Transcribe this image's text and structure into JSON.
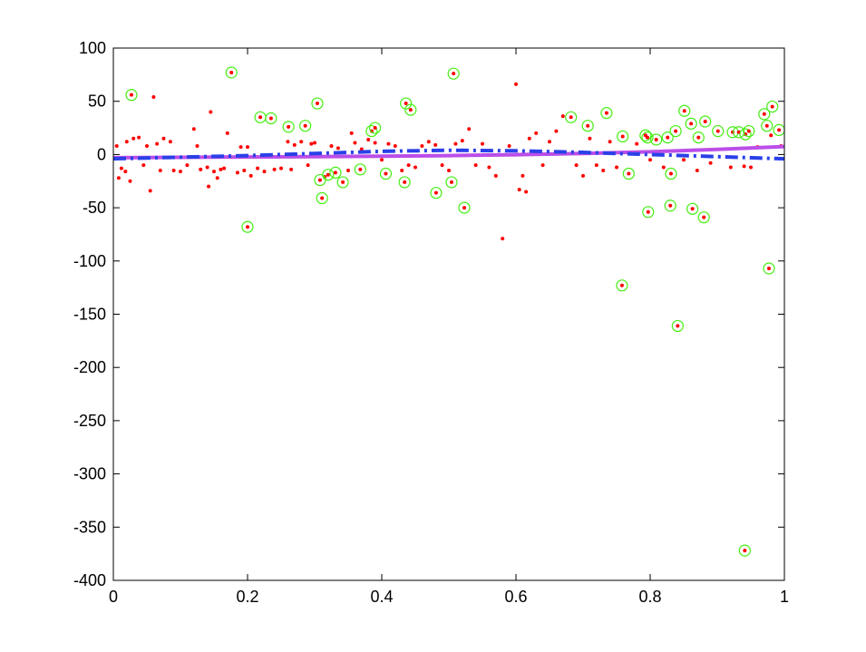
{
  "chart_data": {
    "type": "scatter",
    "xlim": [
      0,
      1
    ],
    "xticks": [
      0,
      0.2,
      0.4,
      0.6,
      0.8,
      1
    ],
    "ylim": [
      -400,
      100
    ],
    "yticks": [
      -400,
      -350,
      -300,
      -250,
      -200,
      -150,
      -100,
      -50,
      0,
      50,
      100
    ],
    "series": [
      {
        "marker": "dot",
        "color": "#ff0000",
        "x": [
          0.005,
          0.008,
          0.012,
          0.018,
          0.02,
          0.025,
          0.03,
          0.038,
          0.045,
          0.05,
          0.055,
          0.06,
          0.065,
          0.07,
          0.075,
          0.085,
          0.09,
          0.1,
          0.11,
          0.12,
          0.125,
          0.13,
          0.14,
          0.142,
          0.145,
          0.15,
          0.155,
          0.16,
          0.165,
          0.17,
          0.185,
          0.19,
          0.195,
          0.2,
          0.205,
          0.215,
          0.225,
          0.24,
          0.25,
          0.26,
          0.265,
          0.27,
          0.28,
          0.29,
          0.295,
          0.3,
          0.315,
          0.325,
          0.335,
          0.35,
          0.355,
          0.36,
          0.37,
          0.38,
          0.39,
          0.4,
          0.41,
          0.42,
          0.43,
          0.44,
          0.45,
          0.46,
          0.47,
          0.48,
          0.49,
          0.5,
          0.51,
          0.52,
          0.53,
          0.54,
          0.55,
          0.56,
          0.57,
          0.58,
          0.59,
          0.6,
          0.605,
          0.61,
          0.615,
          0.62,
          0.63,
          0.64,
          0.65,
          0.66,
          0.67,
          0.69,
          0.7,
          0.71,
          0.72,
          0.73,
          0.74,
          0.75,
          0.78,
          0.8,
          0.82,
          0.85,
          0.87,
          0.89,
          0.92,
          0.94,
          0.95,
          0.96,
          0.98,
          0.995
        ],
        "values": [
          8,
          -22,
          -13,
          -16,
          12,
          -25,
          15,
          16,
          -10,
          8,
          -34,
          54,
          10,
          -15,
          15,
          12,
          -15,
          -16,
          -10,
          24,
          8,
          -14,
          -12,
          -30,
          40,
          -16,
          -22,
          -14,
          -13,
          20,
          -17,
          7,
          -15,
          7,
          -20,
          -13,
          -16,
          -14,
          -13,
          12,
          -14,
          9,
          12,
          -10,
          10,
          11,
          -21,
          8,
          6,
          -15,
          20,
          11,
          5,
          14,
          11,
          -5,
          10,
          8,
          -15,
          -10,
          -12,
          8,
          12,
          9,
          -10,
          -15,
          10,
          13,
          24,
          -10,
          10,
          -12,
          -20,
          -79,
          8,
          66,
          -33,
          -20,
          -35,
          15,
          20,
          -10,
          12,
          22,
          36,
          -10,
          -20,
          15,
          -10,
          -15,
          12,
          -12,
          10,
          -5,
          -12,
          -5,
          -15,
          -8,
          -12,
          -11,
          -12,
          7,
          18,
          8
        ]
      },
      {
        "marker": "circled",
        "color": "#44ee11",
        "dot_color": "#ff0000",
        "x": [
          0.027,
          0.176,
          0.2,
          0.219,
          0.235,
          0.261,
          0.286,
          0.304,
          0.308,
          0.311,
          0.32,
          0.331,
          0.342,
          0.368,
          0.385,
          0.39,
          0.406,
          0.434,
          0.436,
          0.443,
          0.481,
          0.504,
          0.507,
          0.523,
          0.682,
          0.707,
          0.735,
          0.758,
          0.759,
          0.768,
          0.793,
          0.796,
          0.797,
          0.809,
          0.826,
          0.83,
          0.831,
          0.838,
          0.841,
          0.851,
          0.861,
          0.863,
          0.872,
          0.88,
          0.882,
          0.901,
          0.923,
          0.932,
          0.941,
          0.942,
          0.947,
          0.97,
          0.974,
          0.977,
          0.982,
          0.992
        ],
        "values": [
          56,
          77,
          -68,
          35,
          34,
          26,
          27,
          48,
          -24,
          -41,
          -19,
          -17,
          -26,
          -14,
          22,
          25,
          -18,
          -26,
          48,
          42,
          -36,
          -26,
          76,
          -50,
          35,
          27,
          39,
          -123,
          17,
          -18,
          18,
          16,
          -54,
          14,
          16,
          -48,
          -18,
          22,
          -161,
          41,
          29,
          -51,
          16,
          -59,
          31,
          22,
          21,
          21,
          -372,
          19,
          22,
          38,
          27,
          -107,
          45,
          23
        ]
      },
      {
        "line": "solid",
        "color": "#bb4ee8",
        "x": [
          0,
          0.1,
          0.2,
          0.3,
          0.4,
          0.5,
          0.6,
          0.7,
          0.8,
          0.9,
          1
        ],
        "values": [
          -3,
          -2.6,
          -2.3,
          -2,
          -1.6,
          -1,
          -0.2,
          1,
          2.6,
          4.8,
          7.5
        ]
      },
      {
        "line": "dashdot",
        "color": "#2a40e8",
        "x": [
          0,
          0.1,
          0.2,
          0.3,
          0.4,
          0.5,
          0.6,
          0.7,
          0.8,
          0.9,
          1
        ],
        "values": [
          -4,
          -2.5,
          -1,
          1,
          3,
          4,
          3.5,
          2,
          0,
          -2,
          -4
        ]
      }
    ]
  }
}
